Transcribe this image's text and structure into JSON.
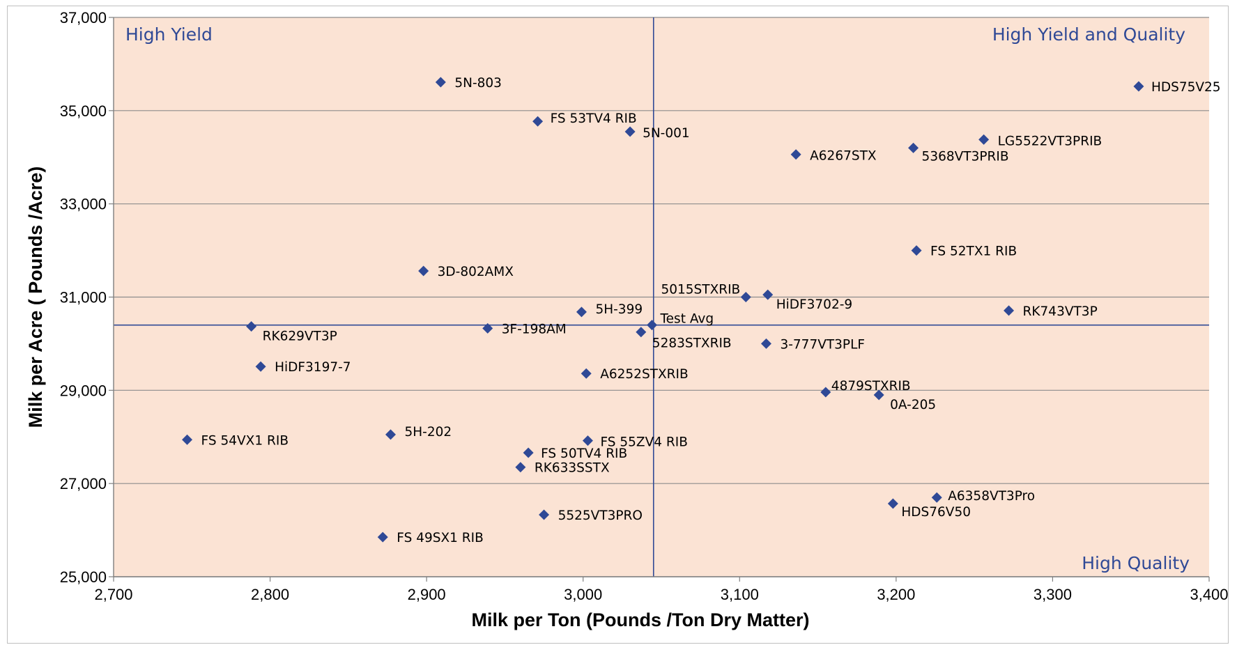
{
  "chart_data": {
    "type": "scatter",
    "title": "",
    "xlabel": "Milk per Ton (Pounds /Ton Dry Matter)",
    "ylabel": "Milk per Acre ( Pounds /Acre)",
    "xlim": [
      2700,
      3400
    ],
    "ylim": [
      25000,
      37000
    ],
    "x_ticks": [
      "2,700",
      "2,800",
      "2,900",
      "3,000",
      "3,100",
      "3,200",
      "3,300",
      "3,400"
    ],
    "y_ticks": [
      "25,000",
      "27,000",
      "29,000",
      "31,000",
      "33,000",
      "35,000",
      "37,000"
    ],
    "grid": "horizontal",
    "reference_lines": {
      "x": 3045,
      "y": 30400
    },
    "quadrant_labels": {
      "top_left": "High Yield",
      "top_right": "High Yield and Quality",
      "bottom_right": "High Quality"
    },
    "colors": {
      "plot_background": "#fbe3d4",
      "marker": "#2f4996",
      "quadrant_text": "#2f4996"
    },
    "points": [
      {
        "label": "HDS75V25",
        "x": 3355,
        "y": 35520
      },
      {
        "label": "5N-803",
        "x": 2909,
        "y": 35610
      },
      {
        "label": "FS 53TV4 RIB",
        "x": 2971,
        "y": 34770
      },
      {
        "label": "5N-001",
        "x": 3030,
        "y": 34550
      },
      {
        "label": "LG5522VT3PRIB",
        "x": 3256,
        "y": 34380
      },
      {
        "label": "5368VT3PRIB",
        "x": 3211,
        "y": 34200
      },
      {
        "label": "A6267STX",
        "x": 3136,
        "y": 34060
      },
      {
        "label": "FS 52TX1 RIB",
        "x": 3213,
        "y": 32000
      },
      {
        "label": "3D-802AMX",
        "x": 2898,
        "y": 31560
      },
      {
        "label": "5015STXRIB",
        "x": 3104,
        "y": 31000
      },
      {
        "label": "HiDF3702-9",
        "x": 3118,
        "y": 31050
      },
      {
        "label": "RK743VT3P",
        "x": 3272,
        "y": 30710
      },
      {
        "label": "5H-399",
        "x": 2999,
        "y": 30680
      },
      {
        "label": "Test Avg",
        "x": 3044,
        "y": 30400
      },
      {
        "label": "RK629VT3P",
        "x": 2788,
        "y": 30370
      },
      {
        "label": "3F-198AM",
        "x": 2939,
        "y": 30330
      },
      {
        "label": "5283STXRIB",
        "x": 3037,
        "y": 30250
      },
      {
        "label": "3-777VT3PLF",
        "x": 3117,
        "y": 30000
      },
      {
        "label": "HiDF3197-7",
        "x": 2794,
        "y": 29510
      },
      {
        "label": "A6252STXRIB",
        "x": 3002,
        "y": 29360
      },
      {
        "label": "4879STXRIB",
        "x": 3155,
        "y": 28960
      },
      {
        "label": "0A-205",
        "x": 3189,
        "y": 28900
      },
      {
        "label": "FS 54VX1 RIB",
        "x": 2747,
        "y": 27940
      },
      {
        "label": "5H-202",
        "x": 2877,
        "y": 28050
      },
      {
        "label": "FS 55ZV4 RIB",
        "x": 3003,
        "y": 27920
      },
      {
        "label": "FS 50TV4 RIB",
        "x": 2965,
        "y": 27660
      },
      {
        "label": "RK633SSTX",
        "x": 2960,
        "y": 27350
      },
      {
        "label": "A6358VT3Pro",
        "x": 3226,
        "y": 26700
      },
      {
        "label": "HDS76V50",
        "x": 3198,
        "y": 26570
      },
      {
        "label": "5525VT3PRO",
        "x": 2975,
        "y": 26330
      },
      {
        "label": "FS 49SX1 RIB",
        "x": 2872,
        "y": 25850
      }
    ]
  }
}
